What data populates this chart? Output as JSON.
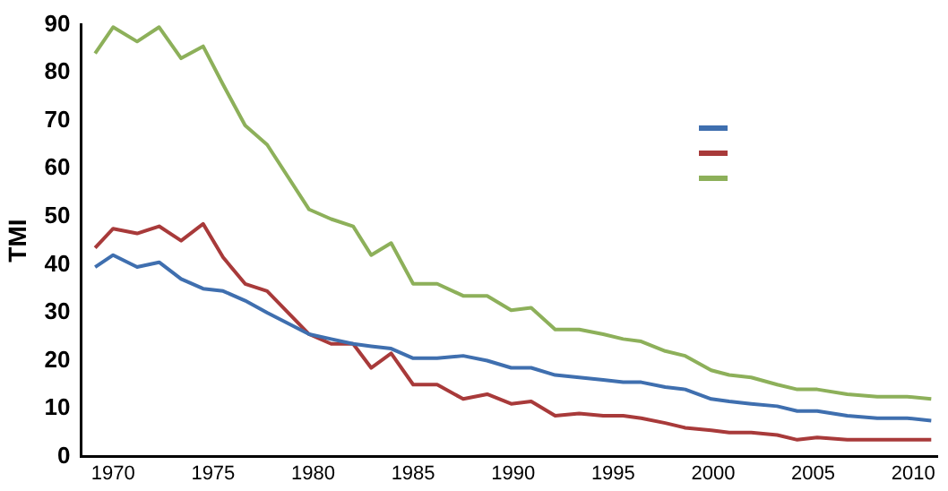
{
  "chart_data": {
    "type": "line",
    "ylabel": "TMI",
    "x": [
      1969.1,
      1970,
      1971.2,
      1972.3,
      1973.4,
      1974.5,
      1975.5,
      1976.6,
      1977.7,
      1979.8,
      1980.9,
      1982,
      1982.9,
      1983.9,
      1985,
      1986.2,
      1987.5,
      1988.7,
      1989.9,
      1990.9,
      1992.1,
      1993.3,
      1994.5,
      1995.5,
      1996.4,
      1997.6,
      1998.6,
      1999.9,
      2000.8,
      2001.9,
      2003.2,
      2004.2,
      2005.2,
      2006.7,
      2008.2,
      2009.7,
      2010.9
    ],
    "series": [
      {
        "color": "#3f6faf",
        "values": [
          39.5,
          42,
          39.5,
          40.5,
          37,
          35,
          34.5,
          32.5,
          30,
          25.5,
          24.5,
          23.5,
          23,
          22.5,
          20.5,
          20.5,
          21,
          20,
          18.5,
          18.5,
          17,
          16.5,
          16,
          15.5,
          15.5,
          14.5,
          14,
          12,
          11.5,
          11,
          10.5,
          9.5,
          9.5,
          8.5,
          8,
          8,
          7.5
        ]
      },
      {
        "color": "#a83a3a",
        "values": [
          43.5,
          47.5,
          46.5,
          48,
          45,
          48.5,
          41.5,
          36,
          34.5,
          25.5,
          23.5,
          23.5,
          18.5,
          21.5,
          15,
          15,
          12,
          13,
          11,
          11.5,
          8.5,
          9,
          8.5,
          8.5,
          8,
          7,
          6,
          5.5,
          5,
          5,
          4.5,
          3.5,
          4,
          3.5,
          3.5,
          3.5,
          3.5
        ]
      },
      {
        "color": "#8db05a",
        "values": [
          84,
          89.5,
          86.5,
          89.5,
          83,
          85.5,
          77.5,
          69,
          65,
          51.5,
          49.5,
          48,
          42,
          44.5,
          36,
          36,
          33.5,
          33.5,
          30.5,
          31,
          26.5,
          26.5,
          25.5,
          24.5,
          24,
          22,
          21,
          18,
          17,
          16.5,
          15,
          14,
          14,
          13,
          12.5,
          12.5,
          12
        ]
      }
    ],
    "xlim": [
      1968.4,
      2011.2
    ],
    "xticks": [
      1970,
      1975,
      1980,
      1985,
      1990,
      1995,
      2000,
      2005,
      2010
    ],
    "ylim": [
      0,
      90
    ],
    "yticks": [
      0,
      10,
      20,
      30,
      40,
      50,
      60,
      70,
      80,
      90
    ],
    "grid": false,
    "marker": "none",
    "line_style": "solid"
  }
}
